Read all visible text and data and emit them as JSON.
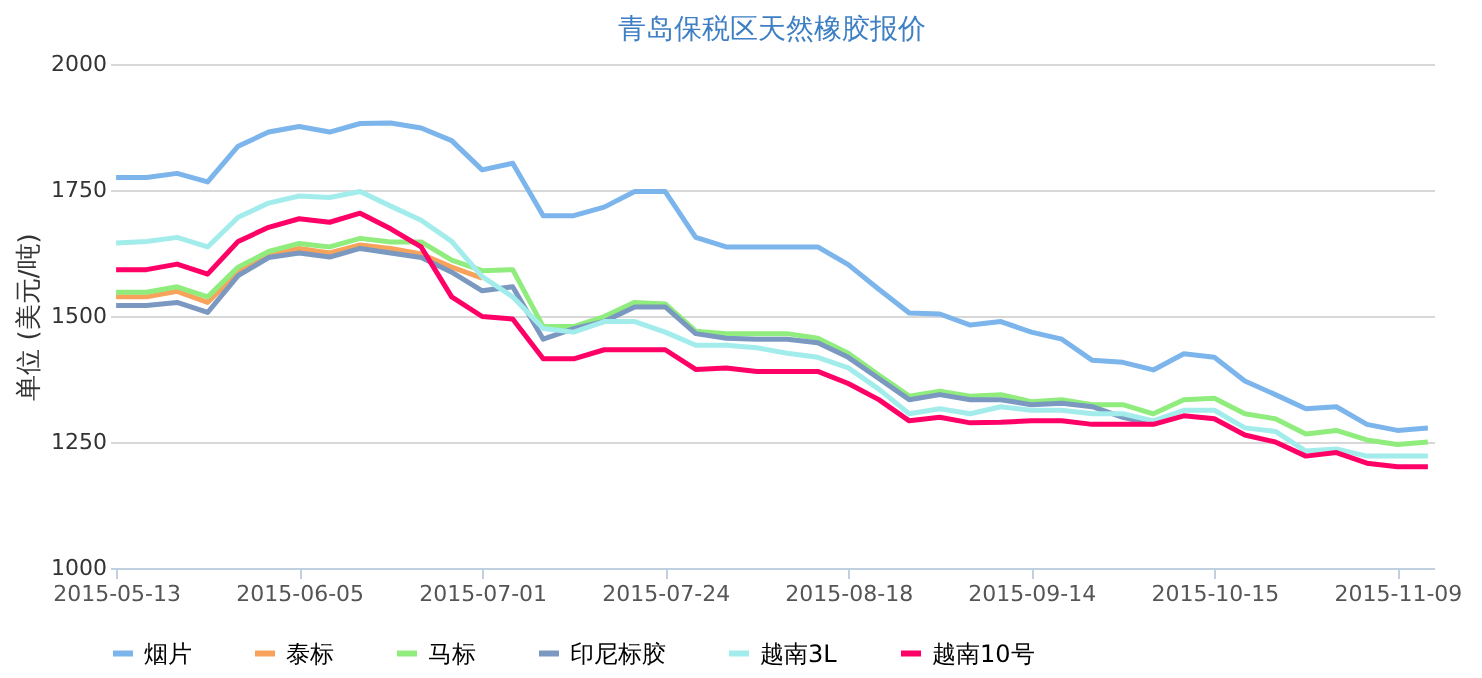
{
  "chart_data": {
    "type": "line",
    "title": "青岛保税区天然橡胶报价",
    "ylabel": "单位 (美元/吨)",
    "categories": [
      "2015-05-13",
      null,
      null,
      null,
      null,
      null,
      "2015-06-05",
      null,
      null,
      null,
      null,
      null,
      "2015-07-01",
      null,
      null,
      null,
      null,
      null,
      "2015-07-24",
      null,
      null,
      null,
      null,
      null,
      "2015-08-18",
      null,
      null,
      null,
      null,
      null,
      "2015-09-14",
      null,
      null,
      null,
      null,
      null,
      "2015-10-15",
      null,
      null,
      null,
      null,
      null,
      "2015-11-09",
      null
    ],
    "series": [
      {
        "name": "烟片",
        "color": "#7cb5ec",
        "values": [
          1775,
          1775,
          1783,
          1766,
          1837,
          1865,
          1876,
          1865,
          1882,
          1883,
          1873,
          1848,
          1790,
          1803,
          1699,
          1699,
          1716,
          1747,
          1747,
          1656,
          1637,
          1637,
          1637,
          1637,
          1602,
          1553,
          1506,
          1504,
          1482,
          1489,
          1468,
          1454,
          1412,
          1408,
          1393,
          1425,
          1418,
          1371,
          1344,
          1316,
          1320,
          1285,
          1273,
          1278
        ]
      },
      {
        "name": "泰标",
        "color": "#f7a35c",
        "values": [
          1538,
          1538,
          1549,
          1527,
          1587,
          1620,
          1634,
          1625,
          1641,
          1634,
          1623,
          1597,
          1575,
          null,
          null,
          null,
          null,
          null,
          null,
          null,
          null,
          null,
          null,
          null,
          null,
          null,
          null,
          null,
          null,
          null,
          null,
          null,
          null,
          null,
          null,
          null,
          null,
          null,
          null,
          null,
          null,
          null,
          null,
          null
        ]
      },
      {
        "name": "马标",
        "color": "#90ed7d",
        "values": [
          1547,
          1547,
          1558,
          1538,
          1597,
          1628,
          1644,
          1637,
          1654,
          1647,
          1647,
          1611,
          1590,
          1592,
          1479,
          1479,
          1499,
          1527,
          1524,
          1470,
          1465,
          1465,
          1465,
          1456,
          1426,
          1383,
          1341,
          1351,
          1341,
          1344,
          1330,
          1334,
          1324,
          1324,
          1306,
          1334,
          1337,
          1306,
          1296,
          1266,
          1273,
          1254,
          1245,
          1250
        ]
      },
      {
        "name": "印尼标胶",
        "color": "#7a98c0",
        "values": [
          1521,
          1521,
          1527,
          1507,
          1580,
          1616,
          1625,
          1617,
          1634,
          1625,
          1616,
          1587,
          1550,
          1558,
          1454,
          1475,
          1489,
          1518,
          1518,
          1465,
          1456,
          1454,
          1454,
          1447,
          1418,
          1376,
          1334,
          1344,
          1334,
          1334,
          1324,
          1327,
          1320,
          1299,
          1285,
          null,
          null,
          null,
          null,
          null,
          null,
          null,
          null,
          null
        ]
      },
      {
        "name": "越南3L",
        "color": "#a3ecec",
        "values": [
          1645,
          1648,
          1656,
          1637,
          1696,
          1724,
          1738,
          1735,
          1747,
          1718,
          1690,
          1648,
          1578,
          1538,
          1475,
          1468,
          1489,
          1489,
          1468,
          1442,
          1442,
          1437,
          1426,
          1418,
          1397,
          1355,
          1306,
          1316,
          1306,
          1320,
          1313,
          1313,
          1306,
          1306,
          1292,
          1313,
          1313,
          1278,
          1271,
          1232,
          1236,
          1222,
          1222,
          1222
        ]
      },
      {
        "name": "越南10号",
        "color": "#ff0066",
        "values": [
          1592,
          1592,
          1603,
          1583,
          1648,
          1676,
          1693,
          1686,
          1704,
          1673,
          1637,
          1538,
          1499,
          1494,
          1415,
          1415,
          1433,
          1433,
          1433,
          1394,
          1397,
          1390,
          1390,
          1390,
          1366,
          1334,
          1292,
          1299,
          1288,
          1289,
          1292,
          1292,
          1285,
          1285,
          1285,
          1302,
          1296,
          1264,
          1250,
          1222,
          1229,
          1208,
          1201,
          1201
        ]
      }
    ],
    "ylim": [
      1000,
      2000
    ],
    "yticks": [
      1000,
      1250,
      1500,
      1750,
      2000
    ],
    "grid": "y",
    "legend": "bottom",
    "marker": "none",
    "line_style": "solid"
  }
}
